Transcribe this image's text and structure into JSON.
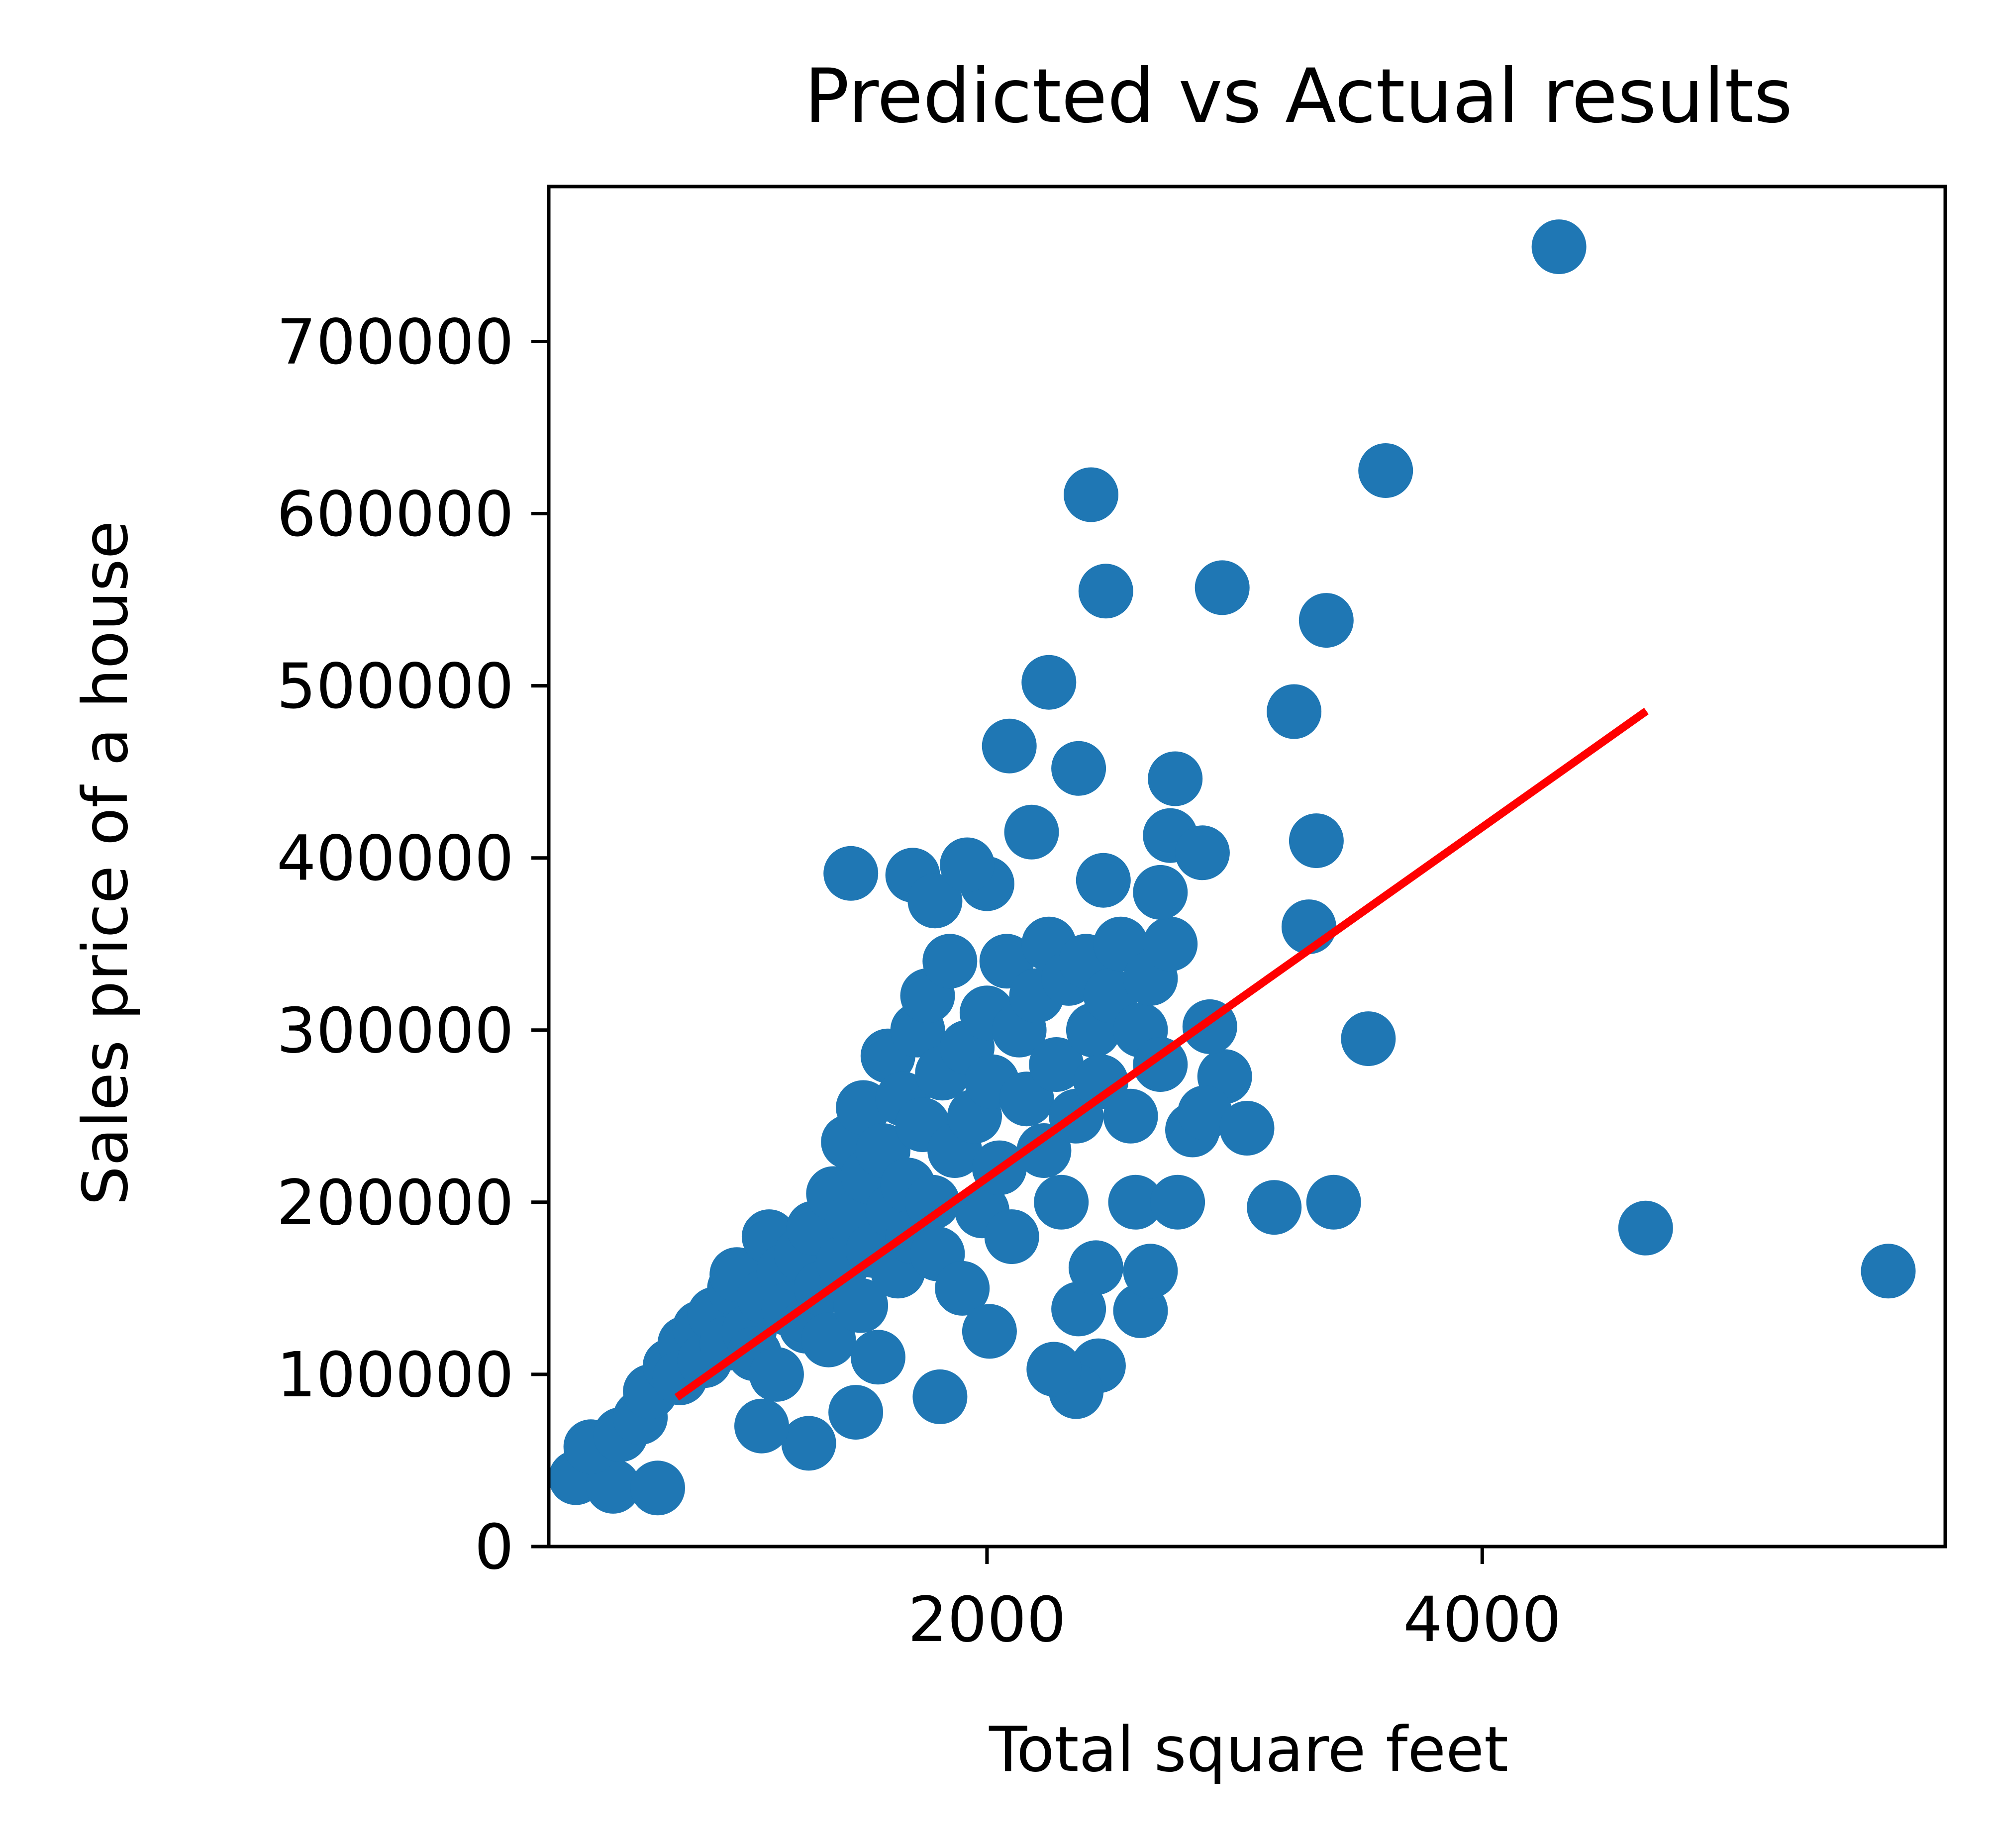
{
  "chart_data": {
    "type": "scatter",
    "title": "Predicted vs Actual results",
    "xlabel": "Total square feet",
    "ylabel": "Sales price of a house",
    "xlim": [
      230,
      5870
    ],
    "ylim": [
      0,
      790000
    ],
    "xticks": [
      2000,
      4000
    ],
    "xtick_labels": [
      "2000",
      "4000"
    ],
    "yticks": [
      0,
      100000,
      200000,
      300000,
      400000,
      500000,
      600000,
      700000
    ],
    "ytick_labels": [
      "0",
      "100000",
      "200000",
      "300000",
      "400000",
      "500000",
      "600000",
      "700000"
    ],
    "grid": false,
    "legend": "none",
    "colors": {
      "points": "#1f77b4",
      "line": "#ff0000",
      "axes": "#000000",
      "background": "#ffffff"
    },
    "series": [
      {
        "kind": "scatter",
        "points": [
          [
            340,
            40000
          ],
          [
            490,
            35000
          ],
          [
            670,
            34000
          ],
          [
            400,
            58000
          ],
          [
            520,
            65000
          ],
          [
            600,
            75000
          ],
          [
            640,
            90000
          ],
          [
            720,
            105000
          ],
          [
            780,
            118000
          ],
          [
            760,
            98000
          ],
          [
            840,
            127000
          ],
          [
            860,
            108000
          ],
          [
            900,
            135000
          ],
          [
            950,
            118000
          ],
          [
            980,
            150000
          ],
          [
            990,
            158000
          ],
          [
            1040,
            125000
          ],
          [
            1060,
            112000
          ],
          [
            1100,
            145000
          ],
          [
            1120,
            180000
          ],
          [
            1150,
            100000
          ],
          [
            1180,
            160000
          ],
          [
            1200,
            138000
          ],
          [
            1250,
            170000
          ],
          [
            1270,
            128000
          ],
          [
            1300,
            185000
          ],
          [
            1330,
            150000
          ],
          [
            1360,
            120000
          ],
          [
            1380,
            205000
          ],
          [
            1420,
            165000
          ],
          [
            1440,
            235000
          ],
          [
            1460,
            190000
          ],
          [
            1490,
            140000
          ],
          [
            1500,
            255000
          ],
          [
            1520,
            215000
          ],
          [
            1540,
            172000
          ],
          [
            1560,
            110000
          ],
          [
            1580,
            230000
          ],
          [
            1600,
            285000
          ],
          [
            1620,
            195000
          ],
          [
            1640,
            160000
          ],
          [
            1660,
            260000
          ],
          [
            1680,
            210000
          ],
          [
            1700,
            180000
          ],
          [
            1720,
            300000
          ],
          [
            1740,
            245000
          ],
          [
            1760,
            320000
          ],
          [
            1780,
            200000
          ],
          [
            1800,
            170000
          ],
          [
            1820,
            275000
          ],
          [
            1850,
            340000
          ],
          [
            1870,
            230000
          ],
          [
            1900,
            150000
          ],
          [
            1920,
            290000
          ],
          [
            1950,
            250000
          ],
          [
            1980,
            195000
          ],
          [
            2000,
            310000
          ],
          [
            2020,
            270000
          ],
          [
            2050,
            220000
          ],
          [
            2080,
            340000
          ],
          [
            2100,
            180000
          ],
          [
            2130,
            300000
          ],
          [
            2160,
            260000
          ],
          [
            2200,
            320000
          ],
          [
            2230,
            230000
          ],
          [
            2250,
            350000
          ],
          [
            2280,
            280000
          ],
          [
            2300,
            200000
          ],
          [
            2330,
            330000
          ],
          [
            2360,
            250000
          ],
          [
            2400,
            340000
          ],
          [
            2430,
            300000
          ],
          [
            2460,
            270000
          ],
          [
            2500,
            320000
          ],
          [
            2540,
            350000
          ],
          [
            2580,
            250000
          ],
          [
            2620,
            300000
          ],
          [
            2660,
            330000
          ],
          [
            2700,
            280000
          ],
          [
            2740,
            350000
          ],
          [
            1280,
            60000
          ],
          [
            1470,
            78000
          ],
          [
            1810,
            87000
          ],
          [
            2010,
            125000
          ],
          [
            1090,
            70000
          ],
          [
            1700,
            390000
          ],
          [
            1450,
            391000
          ],
          [
            1790,
            375000
          ],
          [
            2000,
            385000
          ],
          [
            1920,
            396000
          ],
          [
            2180,
            415000
          ],
          [
            2090,
            465000
          ],
          [
            2370,
            452000
          ],
          [
            2470,
            387000
          ],
          [
            2250,
            502000
          ],
          [
            2370,
            138000
          ],
          [
            2450,
            105000
          ],
          [
            2360,
            90000
          ],
          [
            2270,
            103000
          ],
          [
            2830,
            242000
          ],
          [
            2440,
            162000
          ],
          [
            2600,
            200000
          ],
          [
            2770,
            200000
          ],
          [
            2620,
            137000
          ],
          [
            2660,
            160000
          ],
          [
            2700,
            380000
          ],
          [
            2740,
            413000
          ],
          [
            2870,
            403000
          ],
          [
            2760,
            446000
          ],
          [
            2960,
            273000
          ],
          [
            2900,
            302000
          ],
          [
            2880,
            252000
          ],
          [
            3050,
            243000
          ],
          [
            3160,
            197000
          ],
          [
            3400,
            200000
          ],
          [
            3240,
            485000
          ],
          [
            3300,
            360000
          ],
          [
            3330,
            410000
          ],
          [
            3370,
            538000
          ],
          [
            3540,
            295000
          ],
          [
            3610,
            625000
          ],
          [
            2420,
            611000
          ],
          [
            2480,
            555000
          ],
          [
            2950,
            557000
          ],
          [
            4310,
            755000
          ],
          [
            4660,
            185000
          ],
          [
            5640,
            160000
          ]
        ]
      },
      {
        "kind": "line",
        "points": [
          [
            760,
            88000
          ],
          [
            4650,
            484000
          ]
        ]
      }
    ]
  }
}
